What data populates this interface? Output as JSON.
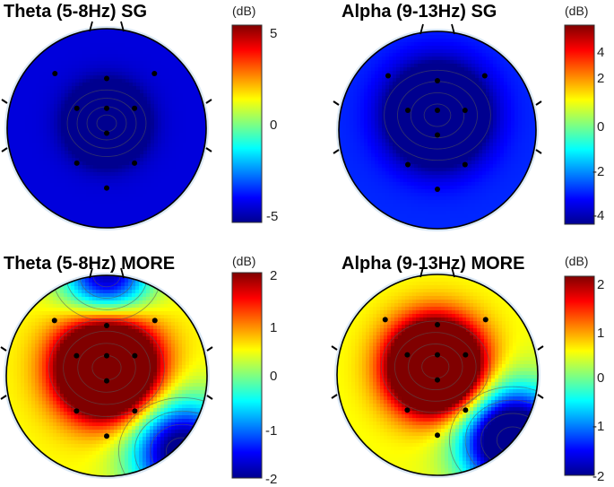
{
  "figure": {
    "colormap": [
      "#00008f",
      "#0000ff",
      "#0080ff",
      "#00ffff",
      "#80ff80",
      "#ffff00",
      "#ff8000",
      "#ff0000",
      "#800000"
    ]
  },
  "chart_data": [
    {
      "type": "heatmap",
      "subtype": "scalp-topography",
      "title": "Theta (5-8Hz) SG",
      "colorbar_label": "(dB)",
      "clim": [
        -5.8,
        5.8
      ],
      "colorbar_ticks": [
        5,
        0,
        -5
      ],
      "background_level": -4.8,
      "sources": [
        {
          "x": 0.0,
          "y": -0.05,
          "amp": -0.7,
          "s": 0.22
        }
      ],
      "electrodes": [
        {
          "x": -0.52,
          "y": -0.55
        },
        {
          "x": 0.0,
          "y": -0.5
        },
        {
          "x": 0.48,
          "y": -0.55
        },
        {
          "x": -0.3,
          "y": -0.2
        },
        {
          "x": 0.0,
          "y": -0.2
        },
        {
          "x": 0.28,
          "y": -0.2
        },
        {
          "x": 0.0,
          "y": 0.05
        },
        {
          "x": -0.3,
          "y": 0.35
        },
        {
          "x": 0.28,
          "y": 0.35
        },
        {
          "x": 0.0,
          "y": 0.6
        }
      ]
    },
    {
      "type": "heatmap",
      "subtype": "scalp-topography",
      "title": "Alpha (9-13Hz) SG",
      "colorbar_label": "(dB)",
      "clim": [
        -4.6,
        4.6
      ],
      "colorbar_ticks": [
        4,
        2,
        0,
        -2,
        -4
      ],
      "background_level": -3.1,
      "sources": [
        {
          "x": 0.0,
          "y": -0.15,
          "amp": -0.8,
          "s": 0.3
        }
      ],
      "electrodes": [
        {
          "x": -0.5,
          "y": -0.55
        },
        {
          "x": 0.0,
          "y": -0.5
        },
        {
          "x": 0.48,
          "y": -0.55
        },
        {
          "x": -0.3,
          "y": -0.2
        },
        {
          "x": 0.0,
          "y": -0.2
        },
        {
          "x": 0.28,
          "y": -0.2
        },
        {
          "x": 0.0,
          "y": 0.05
        },
        {
          "x": -0.3,
          "y": 0.35
        },
        {
          "x": 0.28,
          "y": 0.35
        },
        {
          "x": 0.0,
          "y": 0.6
        }
      ]
    },
    {
      "type": "heatmap",
      "subtype": "scalp-topography",
      "title": "Theta (5-8Hz) MORE",
      "colorbar_label": "(dB)",
      "clim": [
        -2,
        2
      ],
      "colorbar_ticks": [
        2,
        1,
        0,
        -1,
        -2
      ],
      "background_level": 0.5,
      "sources": [
        {
          "x": 0.0,
          "y": -0.08,
          "amp": 1.3,
          "s": 0.32
        },
        {
          "x": 0.0,
          "y": -1.0,
          "amp": -0.6,
          "s": 0.3
        },
        {
          "x": 0.75,
          "y": 0.75,
          "amp": -0.7,
          "s": 0.35
        }
      ],
      "electrodes": [
        {
          "x": -0.52,
          "y": -0.55
        },
        {
          "x": 0.0,
          "y": -0.5
        },
        {
          "x": 0.48,
          "y": -0.55
        },
        {
          "x": -0.3,
          "y": -0.2
        },
        {
          "x": 0.0,
          "y": -0.2
        },
        {
          "x": 0.28,
          "y": -0.2
        },
        {
          "x": 0.0,
          "y": 0.05
        },
        {
          "x": -0.3,
          "y": 0.35
        },
        {
          "x": 0.28,
          "y": 0.35
        },
        {
          "x": 0.0,
          "y": 0.6
        }
      ]
    },
    {
      "type": "heatmap",
      "subtype": "scalp-topography",
      "title": "Alpha (9-13Hz) MORE",
      "colorbar_label": "(dB)",
      "clim": [
        -2,
        2.2
      ],
      "colorbar_ticks": [
        2,
        1,
        0,
        -1,
        -2
      ],
      "background_level": 0.6,
      "sources": [
        {
          "x": -0.02,
          "y": -0.08,
          "amp": 1.3,
          "s": 0.3
        },
        {
          "x": 0.75,
          "y": 0.65,
          "amp": -0.9,
          "s": 0.35
        }
      ],
      "electrodes": [
        {
          "x": -0.52,
          "y": -0.55
        },
        {
          "x": 0.0,
          "y": -0.5
        },
        {
          "x": 0.48,
          "y": -0.55
        },
        {
          "x": -0.3,
          "y": -0.2
        },
        {
          "x": 0.0,
          "y": -0.2
        },
        {
          "x": 0.28,
          "y": -0.2
        },
        {
          "x": 0.0,
          "y": 0.05
        },
        {
          "x": -0.3,
          "y": 0.35
        },
        {
          "x": 0.28,
          "y": 0.35
        },
        {
          "x": 0.0,
          "y": 0.6
        }
      ]
    }
  ]
}
